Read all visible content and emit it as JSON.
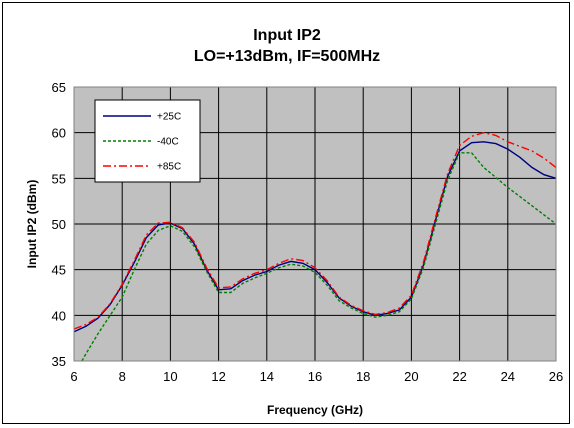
{
  "chart_data": {
    "type": "line",
    "title": "Input IP2",
    "subtitle": "LO=+13dBm, IF=500MHz",
    "xlabel": "Frequency (GHz)",
    "ylabel": "Input IP2 (dBm)",
    "xlim": [
      6,
      26
    ],
    "ylim": [
      35,
      65
    ],
    "xticks": [
      6,
      8,
      10,
      12,
      14,
      16,
      18,
      20,
      22,
      24,
      26
    ],
    "yticks": [
      35,
      40,
      45,
      50,
      55,
      60,
      65
    ],
    "grid": true,
    "plot_background": "#c0c0c0",
    "legend_position": "top-left",
    "series": [
      {
        "name": "+25C",
        "color": "#000080",
        "dash": "solid",
        "x": [
          6,
          6.5,
          7,
          7.5,
          8,
          8.5,
          9,
          9.5,
          10,
          10.5,
          11,
          11.5,
          12,
          12.5,
          13,
          13.5,
          14,
          14.5,
          15,
          15.5,
          16,
          16.5,
          17,
          17.5,
          18,
          18.5,
          19,
          19.5,
          20,
          20.5,
          21,
          21.5,
          22,
          22.5,
          23,
          23.5,
          24,
          24.5,
          25,
          25.5,
          26
        ],
        "y": [
          38.2,
          38.8,
          39.7,
          41.2,
          43.3,
          45.8,
          48.5,
          49.9,
          50.1,
          49.5,
          47.8,
          45.0,
          42.8,
          42.9,
          43.8,
          44.4,
          44.8,
          45.5,
          45.9,
          45.7,
          45.0,
          43.6,
          41.9,
          41.0,
          40.4,
          40.0,
          40.2,
          40.6,
          42.0,
          45.5,
          50.4,
          55.2,
          58.0,
          58.9,
          59.0,
          58.8,
          58.2,
          57.3,
          56.2,
          55.4,
          55.0
        ]
      },
      {
        "name": "-40C",
        "color": "#008000",
        "dash": "dashed",
        "x": [
          6,
          6.5,
          7,
          7.5,
          8,
          8.5,
          9,
          9.5,
          10,
          10.5,
          11,
          11.5,
          12,
          12.5,
          13,
          13.5,
          14,
          14.5,
          15,
          15.5,
          16,
          16.5,
          17,
          17.5,
          18,
          18.5,
          19,
          19.5,
          20,
          20.5,
          21,
          21.5,
          22,
          22.5,
          23,
          23.5,
          24,
          24.5,
          25,
          25.5,
          26
        ],
        "y": [
          33.5,
          35.8,
          38.0,
          40.0,
          42.0,
          45.0,
          47.8,
          49.3,
          49.8,
          49.2,
          47.5,
          44.8,
          42.5,
          42.5,
          43.5,
          44.1,
          44.6,
          45.2,
          45.6,
          45.4,
          44.7,
          43.3,
          41.6,
          40.8,
          40.2,
          39.8,
          40.0,
          40.4,
          41.8,
          45.2,
          50.0,
          54.8,
          57.8,
          57.8,
          56.2,
          55.1,
          54.0,
          53.0,
          52.0,
          51.0,
          50.0
        ]
      },
      {
        "name": "+85C",
        "color": "#ff0000",
        "dash": "dashdot",
        "x": [
          6,
          6.5,
          7,
          7.5,
          8,
          8.5,
          9,
          9.5,
          10,
          10.5,
          11,
          11.5,
          12,
          12.5,
          13,
          13.5,
          14,
          14.5,
          15,
          15.5,
          16,
          16.5,
          17,
          17.5,
          18,
          18.5,
          19,
          19.5,
          20,
          20.5,
          21,
          21.5,
          22,
          22.5,
          23,
          23.5,
          24,
          24.5,
          25,
          25.5,
          26
        ],
        "y": [
          38.5,
          39.0,
          39.8,
          41.3,
          43.4,
          46.0,
          48.8,
          50.1,
          50.2,
          49.6,
          48.0,
          45.2,
          43.0,
          43.1,
          44.0,
          44.6,
          45.0,
          45.7,
          46.2,
          46.0,
          45.2,
          43.8,
          42.0,
          41.1,
          40.5,
          40.1,
          40.3,
          40.8,
          42.2,
          45.8,
          50.7,
          55.5,
          58.6,
          59.6,
          60.0,
          59.7,
          59.0,
          58.5,
          58.0,
          57.2,
          56.2
        ]
      }
    ]
  }
}
